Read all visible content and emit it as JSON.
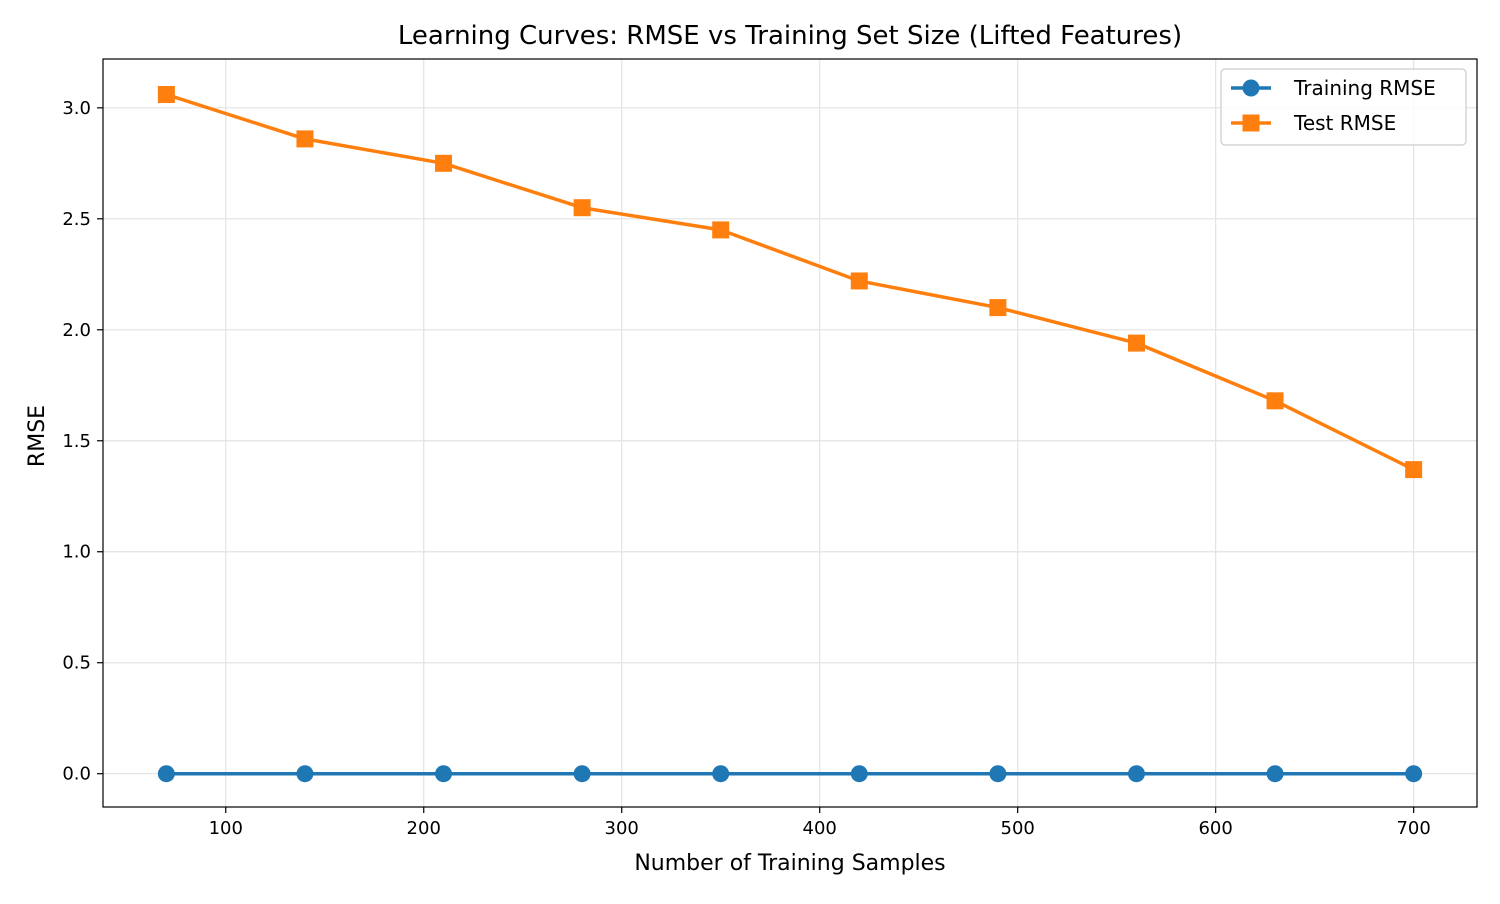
{
  "chart_data": {
    "type": "line",
    "title": "Learning Curves: RMSE vs Training Set Size (Lifted Features)",
    "xlabel": "Number of Training Samples",
    "ylabel": "RMSE",
    "xlim": [
      38,
      732
    ],
    "ylim": [
      -0.15,
      3.22
    ],
    "xticks": [
      100,
      200,
      300,
      400,
      500,
      600,
      700
    ],
    "yticks": [
      0.0,
      0.5,
      1.0,
      1.5,
      2.0,
      2.5,
      3.0
    ],
    "xtick_labels": [
      "100",
      "200",
      "300",
      "400",
      "500",
      "600",
      "700"
    ],
    "ytick_labels": [
      "0.0",
      "0.5",
      "1.0",
      "1.5",
      "2.0",
      "2.5",
      "3.0"
    ],
    "grid": true,
    "legend_position": "top-right",
    "x": [
      70,
      140,
      210,
      280,
      350,
      420,
      490,
      560,
      630,
      700
    ],
    "series": [
      {
        "name": "Training RMSE",
        "color": "#1f77b4",
        "marker": "circle",
        "values": [
          0.0,
          0.0,
          0.0,
          0.0,
          0.0,
          0.0,
          0.0,
          0.0,
          0.0,
          0.0
        ]
      },
      {
        "name": "Test RMSE",
        "color": "#ff7f0e",
        "marker": "square",
        "values": [
          3.06,
          2.86,
          2.75,
          2.55,
          2.45,
          2.22,
          2.1,
          1.94,
          1.68,
          1.37
        ]
      }
    ]
  }
}
